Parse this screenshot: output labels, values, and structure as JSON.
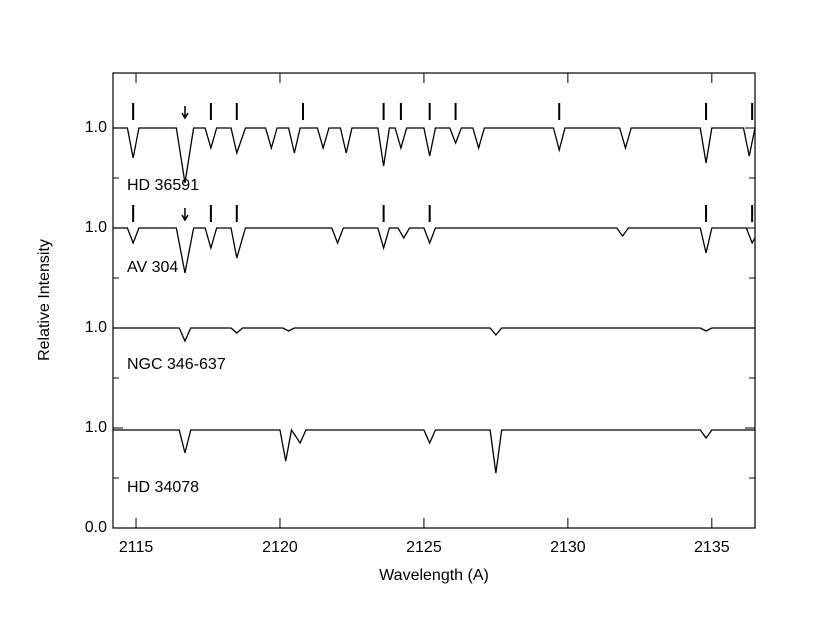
{
  "chart_data": {
    "type": "line",
    "xlabel": "Wavelength (A)",
    "ylabel": "Relative Intensity",
    "xlim": [
      2114.2,
      2136.5
    ],
    "ylim": [
      0,
      4.55
    ],
    "xticks": [
      2115,
      2120,
      2125,
      2130,
      2135
    ],
    "yticks": [
      {
        "value": 0,
        "label": "0.0"
      },
      {
        "value": 1,
        "label": "1.0"
      },
      {
        "value": 2,
        "label": "1.0"
      },
      {
        "value": 3,
        "label": "1.0"
      },
      {
        "value": 4,
        "label": "1.0"
      }
    ],
    "yminor_ticks": [
      0.5,
      1.5,
      2.5,
      3.5
    ],
    "series": [
      {
        "name": "HD 36591",
        "color": "#000000",
        "x": [
          2114.2,
          2114.7,
          2114.9,
          2115.1,
          2116.4,
          2116.7,
          2117.0,
          2117.4,
          2117.6,
          2117.8,
          2118.3,
          2118.5,
          2118.8,
          2119.5,
          2119.7,
          2119.9,
          2120.3,
          2120.5,
          2120.7,
          2121.3,
          2121.5,
          2121.7,
          2122.1,
          2122.3,
          2122.5,
          2123.4,
          2123.6,
          2123.8,
          2124.0,
          2124.2,
          2124.4,
          2125.0,
          2125.2,
          2125.4,
          2125.9,
          2126.1,
          2126.3,
          2126.7,
          2126.9,
          2127.1,
          2129.5,
          2129.7,
          2129.9,
          2131.8,
          2132.0,
          2132.2,
          2134.6,
          2134.8,
          2135.0,
          2136.1,
          2136.3,
          2136.5
        ],
        "values": [
          4.0,
          4.0,
          3.7,
          4.0,
          4.0,
          3.45,
          4.0,
          4.0,
          3.8,
          4.0,
          4.0,
          3.75,
          4.0,
          4.0,
          3.8,
          4.0,
          4.0,
          3.75,
          4.0,
          4.0,
          3.8,
          4.0,
          4.0,
          3.75,
          4.0,
          4.0,
          3.62,
          4.0,
          4.0,
          3.8,
          4.0,
          4.0,
          3.72,
          4.0,
          4.0,
          3.85,
          4.0,
          4.0,
          3.8,
          4.0,
          4.0,
          3.78,
          4.0,
          4.0,
          3.8,
          4.0,
          4.0,
          3.65,
          4.0,
          4.0,
          3.72,
          4.0
        ],
        "line_markers": [
          2114.9,
          2117.6,
          2118.5,
          2120.8,
          2123.6,
          2124.2,
          2125.2,
          2126.1,
          2129.7,
          2134.8,
          2136.4
        ],
        "arrow": 2116.7
      },
      {
        "name": "AV 304",
        "color": "#000000",
        "x": [
          2114.2,
          2114.7,
          2114.9,
          2115.1,
          2116.4,
          2116.7,
          2117.0,
          2117.4,
          2117.6,
          2117.8,
          2118.3,
          2118.5,
          2118.8,
          2121.8,
          2122.0,
          2122.2,
          2123.4,
          2123.6,
          2123.8,
          2124.1,
          2124.3,
          2124.5,
          2125.0,
          2125.2,
          2125.4,
          2131.7,
          2131.9,
          2132.1,
          2134.6,
          2134.8,
          2135.0,
          2136.2,
          2136.4,
          2136.5
        ],
        "values": [
          3.0,
          3.0,
          2.85,
          3.0,
          3.0,
          2.55,
          3.0,
          3.0,
          2.8,
          3.0,
          3.0,
          2.7,
          3.0,
          3.0,
          2.85,
          3.0,
          3.0,
          2.8,
          3.0,
          3.0,
          2.9,
          3.0,
          3.0,
          2.85,
          3.0,
          3.0,
          2.92,
          3.0,
          3.0,
          2.75,
          3.0,
          3.0,
          2.85,
          2.9
        ],
        "line_markers": [
          2114.9,
          2117.6,
          2118.5,
          2123.6,
          2125.2,
          2134.8,
          2136.4
        ],
        "arrow": 2116.7
      },
      {
        "name": "NGC 346-637",
        "color": "#000000",
        "x": [
          2114.2,
          2116.5,
          2116.7,
          2116.9,
          2118.3,
          2118.5,
          2118.7,
          2120.1,
          2120.3,
          2120.5,
          2127.3,
          2127.5,
          2127.7,
          2134.6,
          2134.8,
          2135.0,
          2136.5
        ],
        "values": [
          2.0,
          2.0,
          1.87,
          2.0,
          2.0,
          1.95,
          2.0,
          2.0,
          1.97,
          2.0,
          2.0,
          1.93,
          2.0,
          2.0,
          1.97,
          2.0,
          2.0
        ]
      },
      {
        "name": "HD 34078",
        "color": "#000000",
        "x": [
          2114.2,
          2116.5,
          2116.7,
          2116.9,
          2120.0,
          2120.2,
          2120.4,
          2120.7,
          2120.9,
          2125.0,
          2125.2,
          2125.4,
          2127.3,
          2127.5,
          2127.7,
          2134.6,
          2134.8,
          2135.0,
          2136.5
        ],
        "values": [
          0.98,
          0.98,
          0.75,
          0.98,
          0.98,
          0.67,
          0.98,
          0.85,
          0.98,
          0.98,
          0.85,
          0.98,
          0.98,
          0.55,
          0.98,
          0.98,
          0.9,
          0.98,
          0.98
        ]
      }
    ]
  }
}
